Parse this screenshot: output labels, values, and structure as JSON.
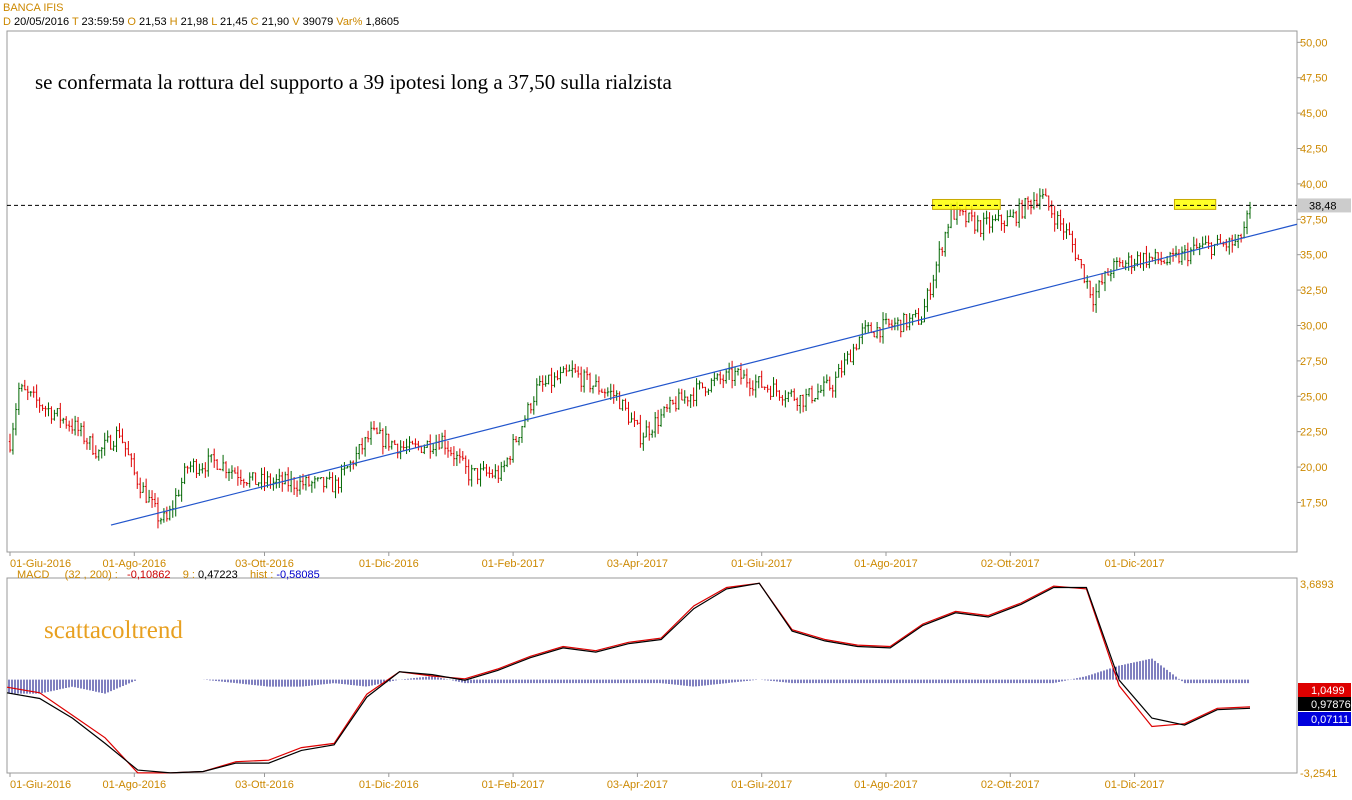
{
  "header": {
    "symbol": "BANCA IFIS",
    "d_label": "D",
    "date": "20/05/2016",
    "t_label": "T",
    "time": "23:59:59",
    "o_label": "O",
    "open": "21,53",
    "h_label": "H",
    "high": "21,98",
    "l_label": "L",
    "low": "21,45",
    "c_label": "C",
    "close": "21,90",
    "v_label": "V",
    "volume": "39079",
    "var_label": "Var%",
    "var": "1,8605"
  },
  "macd_header": {
    "name": "MACD",
    "params": "(32 , 200) :",
    "macd_value": "-0,10862",
    "signal_label": "9 :",
    "signal_value": "0,47223",
    "hist_label": "hist :",
    "hist_value": "-0,58085"
  },
  "annotation": "se confermata la rottura del supporto a 39 ipotesi long a 37,50 sulla rialzista",
  "watermark": "scattacoltrend",
  "price_tag": "38,48",
  "macd_tags": {
    "top": "1,0499",
    "mid": "0,97876",
    "bot": "0,07111"
  },
  "macd_axis": {
    "max": "3,6893",
    "min": "-3,2541"
  },
  "colors": {
    "up": "#006600",
    "down": "#dd0000",
    "trendline": "#2255cc",
    "highlight": "#ffff00",
    "axis_text": "#cc8800",
    "macd_line": "#000000",
    "signal_line": "#dd0000",
    "hist": "#000080"
  },
  "chart_data": [
    {
      "type": "candlestick",
      "title": "BANCA IFIS",
      "ylim": [
        14.0,
        50.8
      ],
      "y_ticks": [
        "50,00",
        "47,50",
        "45,00",
        "42,50",
        "40,00",
        "37,50",
        "35,00",
        "32,50",
        "30,00",
        "27,50",
        "25,00",
        "22,50",
        "20,00",
        "17,50"
      ],
      "y_tick_values": [
        50,
        47.5,
        45,
        42.5,
        40,
        37.5,
        35,
        32.5,
        30,
        27.5,
        25,
        22.5,
        20,
        17.5
      ],
      "x_ticks": [
        "01-Giu-2016",
        "01-Ago-2016",
        "03-Ott-2016",
        "01-Dic-2016",
        "01-Feb-2017",
        "03-Apr-2017",
        "01-Giu-2017",
        "01-Ago-2017",
        "02-Ott-2017",
        "01-Dic-2017"
      ],
      "x_tick_indices": [
        0,
        42,
        86,
        128,
        170,
        212,
        254,
        296,
        338,
        380
      ],
      "n_bars": 420,
      "price_anchors": [
        [
          0,
          21.8
        ],
        [
          3,
          25.5
        ],
        [
          12,
          24.2
        ],
        [
          22,
          22.8
        ],
        [
          30,
          21.0
        ],
        [
          37,
          22.5
        ],
        [
          42,
          19.5
        ],
        [
          50,
          16.5
        ],
        [
          53,
          16.2
        ],
        [
          60,
          20.0
        ],
        [
          70,
          20.4
        ],
        [
          82,
          19.0
        ],
        [
          92,
          18.9
        ],
        [
          110,
          18.7
        ],
        [
          122,
          22.3
        ],
        [
          135,
          21.2
        ],
        [
          146,
          22.0
        ],
        [
          155,
          19.5
        ],
        [
          166,
          19.5
        ],
        [
          178,
          25.5
        ],
        [
          190,
          26.7
        ],
        [
          195,
          26.0
        ],
        [
          205,
          25.0
        ],
        [
          213,
          22.2
        ],
        [
          225,
          24.5
        ],
        [
          235,
          25.8
        ],
        [
          245,
          26.5
        ],
        [
          258,
          25.5
        ],
        [
          268,
          24.8
        ],
        [
          278,
          25.8
        ],
        [
          288,
          29.5
        ],
        [
          298,
          30.0
        ],
        [
          308,
          30.5
        ],
        [
          318,
          38.0
        ],
        [
          328,
          37.0
        ],
        [
          338,
          37.5
        ],
        [
          348,
          39.3
        ],
        [
          358,
          36.2
        ],
        [
          366,
          32.0
        ],
        [
          372,
          34.0
        ],
        [
          382,
          34.8
        ],
        [
          392,
          34.5
        ],
        [
          402,
          35.5
        ],
        [
          415,
          35.8
        ],
        [
          420,
          38.5
        ]
      ],
      "support_level": 38.48,
      "highlight_zones": [
        {
          "from_index": 0.7175,
          "to_index": 0.77,
          "low": 38.2,
          "high": 38.9
        },
        {
          "from_index": 0.905,
          "to_index": 0.937,
          "low": 38.2,
          "high": 38.9
        }
      ],
      "trendline": [
        {
          "x_frac": 0.0806,
          "price": 15.9
        },
        {
          "x_frac": 1.0,
          "price": 37.15
        }
      ]
    },
    {
      "type": "line",
      "title": "MACD",
      "series": [
        {
          "name": "MACD",
          "values": [
            -0.4,
            -0.6,
            -1.3,
            -2.2,
            -3.15,
            -3.25,
            -3.2,
            -2.9,
            -2.9,
            -2.45,
            -2.25,
            -0.55,
            0.35,
            0.25,
            0.05,
            0.4,
            0.85,
            1.2,
            1.05,
            1.35,
            1.5,
            2.6,
            3.3,
            3.5,
            1.8,
            1.45,
            1.25,
            1.2,
            2.0,
            2.45,
            2.3,
            2.75,
            3.35,
            3.35,
            0.05,
            -1.3,
            -1.55,
            -1.0,
            -0.95
          ]
        },
        {
          "name": "9",
          "values": [
            -0.2,
            -0.4,
            -1.2,
            -2.0,
            -3.25,
            -3.25,
            -3.2,
            -2.85,
            -2.8,
            -2.35,
            -2.2,
            -0.45,
            0.35,
            0.2,
            0.1,
            0.45,
            0.9,
            1.25,
            1.1,
            1.4,
            1.55,
            2.7,
            3.35,
            3.5,
            1.85,
            1.5,
            1.3,
            1.25,
            2.05,
            2.5,
            2.35,
            2.8,
            3.4,
            3.3,
            -0.15,
            -1.6,
            -1.5,
            -0.95,
            -0.9
          ]
        },
        {
          "name": "hist",
          "values": [
            -0.2,
            -0.2,
            -0.1,
            -0.2,
            0.0,
            0.0,
            0.0,
            -0.05,
            -0.1,
            -0.1,
            -0.05,
            -0.1,
            0.0,
            0.05,
            -0.05,
            -0.05,
            -0.05,
            -0.05,
            -0.05,
            -0.05,
            -0.05,
            -0.1,
            -0.05,
            0.0,
            -0.05,
            -0.05,
            -0.05,
            -0.05,
            -0.05,
            -0.05,
            -0.05,
            -0.05,
            -0.05,
            0.05,
            0.2,
            0.3,
            -0.05,
            -0.05,
            -0.05
          ]
        }
      ],
      "ylim": [
        -3.2541,
        3.6893
      ],
      "zero_line": 0.07111
    }
  ]
}
